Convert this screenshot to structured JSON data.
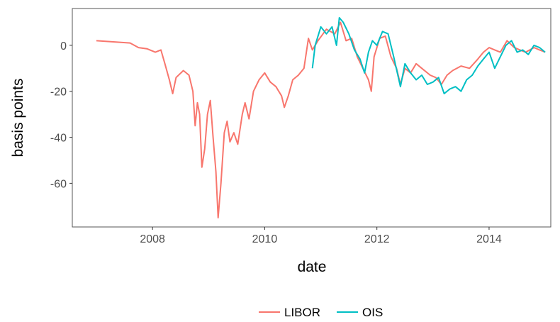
{
  "chart_data": {
    "type": "line",
    "x_label": "date",
    "y_label": "basis points",
    "xlim": [
      2006.57,
      2015.1
    ],
    "ylim": [
      -79,
      16
    ],
    "xticks": [
      2008,
      2010,
      2012,
      2014
    ],
    "yticks": [
      -60,
      -40,
      -20,
      0
    ],
    "legend": "bottom",
    "series": [
      {
        "name": "LIBOR",
        "color": "#F8766D",
        "x": [
          2007.0,
          2007.3,
          2007.6,
          2007.75,
          2007.9,
          2008.05,
          2008.15,
          2008.22,
          2008.3,
          2008.36,
          2008.42,
          2008.55,
          2008.65,
          2008.72,
          2008.76,
          2008.8,
          2008.84,
          2008.88,
          2008.93,
          2008.98,
          2009.03,
          2009.08,
          2009.13,
          2009.17,
          2009.22,
          2009.28,
          2009.33,
          2009.38,
          2009.45,
          2009.52,
          2009.6,
          2009.65,
          2009.72,
          2009.8,
          2009.9,
          2010.0,
          2010.1,
          2010.2,
          2010.3,
          2010.35,
          2010.42,
          2010.5,
          2010.6,
          2010.7,
          2010.78,
          2010.85,
          2010.95,
          2011.1,
          2011.25,
          2011.35,
          2011.45,
          2011.55,
          2011.65,
          2011.75,
          2011.85,
          2011.9,
          2011.95,
          2012.05,
          2012.15,
          2012.25,
          2012.35,
          2012.42,
          2012.5,
          2012.6,
          2012.7,
          2012.8,
          2012.95,
          2013.05,
          2013.15,
          2013.25,
          2013.35,
          2013.5,
          2013.65,
          2013.8,
          2013.9,
          2014.0,
          2014.1,
          2014.2,
          2014.32,
          2014.45,
          2014.55,
          2014.65,
          2014.8,
          2014.9,
          2015.0
        ],
        "values": [
          2,
          1.5,
          1,
          -1,
          -1.5,
          -3,
          -2,
          -8,
          -15,
          -21,
          -14,
          -11,
          -13,
          -20,
          -35,
          -25,
          -30,
          -53,
          -45,
          -30,
          -24,
          -40,
          -55,
          -75,
          -60,
          -38,
          -33,
          -42,
          -38,
          -43,
          -30,
          -25,
          -32,
          -20,
          -15,
          -12,
          -16,
          -18,
          -22,
          -27,
          -22,
          -15,
          -13,
          -10,
          3,
          -2,
          2,
          7,
          5,
          10,
          2,
          3,
          -5,
          -10,
          -15,
          -20,
          -5,
          3,
          4,
          -5,
          -10,
          -17,
          -10,
          -12,
          -8,
          -10,
          -13,
          -14,
          -17,
          -13,
          -11,
          -9,
          -10,
          -6,
          -3,
          -1,
          -2,
          -3,
          2,
          -1,
          -2,
          -3,
          -1,
          -2,
          -3
        ]
      },
      {
        "name": "OIS",
        "color": "#00BFC4",
        "x": [
          2010.85,
          2010.9,
          2011.0,
          2011.1,
          2011.2,
          2011.28,
          2011.33,
          2011.4,
          2011.5,
          2011.6,
          2011.7,
          2011.78,
          2011.85,
          2011.92,
          2012.0,
          2012.1,
          2012.2,
          2012.3,
          2012.42,
          2012.5,
          2012.6,
          2012.7,
          2012.8,
          2012.9,
          2013.0,
          2013.1,
          2013.2,
          2013.3,
          2013.4,
          2013.5,
          2013.6,
          2013.7,
          2013.8,
          2013.9,
          2014.0,
          2014.1,
          2014.2,
          2014.3,
          2014.4,
          2014.5,
          2014.6,
          2014.7,
          2014.8,
          2014.9,
          2015.0
        ],
        "values": [
          -10,
          0,
          8,
          5,
          8,
          0,
          12,
          10,
          5,
          -2,
          -6,
          -12,
          -3,
          2,
          0,
          6,
          5,
          -5,
          -18,
          -8,
          -12,
          -15,
          -13,
          -17,
          -16,
          -14,
          -21,
          -19,
          -18,
          -20,
          -15,
          -13,
          -9,
          -6,
          -3,
          -10,
          -5,
          0,
          2,
          -3,
          -2,
          -4,
          0,
          -1,
          -3
        ]
      }
    ]
  }
}
